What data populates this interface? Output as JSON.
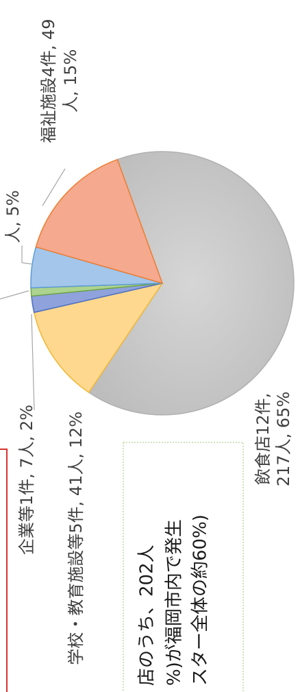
{
  "chart_data": {
    "type": "pie",
    "values": [
      65,
      12,
      2,
      1,
      5,
      15
    ],
    "value_labels": [
      [
        "飲食店12件,",
        "217人, 65%"
      ],
      [
        "学校・教育施設等5件, 41人, 12%"
      ],
      [
        "企業等1件, 7人, 2%"
      ],
      null,
      [
        "人, 5%"
      ],
      [
        "福祉施設4件, 49",
        "人, 15%"
      ]
    ],
    "colors": [
      "#c9c9c9",
      "#ffd88f",
      "#8fa2db",
      "#acd38f",
      "#a3c6ea",
      "#f5a98e"
    ],
    "edge_colors": [
      "#b0b0b0",
      "#f2b632",
      "#4a6fc2",
      "#6fa64b",
      "#5b9bd5",
      "#ed7d31"
    ],
    "annotation": [
      "店のうち、202人",
      "%)が福岡市内で発生",
      "スター全体の約60%)"
    ]
  }
}
